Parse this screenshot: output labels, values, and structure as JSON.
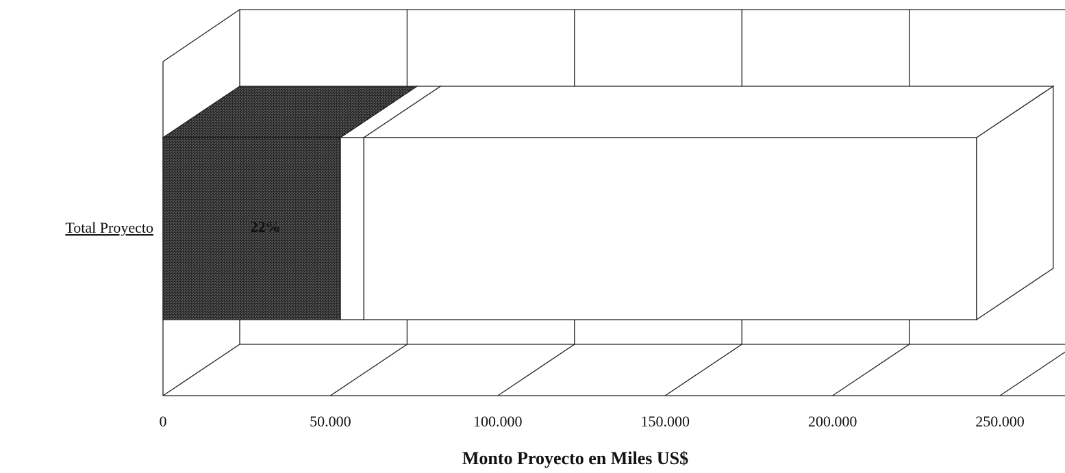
{
  "chart_data": {
    "type": "bar",
    "orientation": "horizontal",
    "stacked": true,
    "three_d": true,
    "categories": [
      "Total Proyecto"
    ],
    "series": [
      {
        "color": "#bdbdbd",
        "values": [
          53000
        ],
        "value_labels": [
          "22%"
        ]
      },
      {
        "color": "#ffffff",
        "values": [
          7000
        ]
      },
      {
        "color": "#ffffff",
        "values": [
          183000
        ]
      }
    ],
    "x_label": "Monto Proyecto en Miles US$",
    "xlim": [
      0,
      250000
    ],
    "xticks": [
      0,
      {
        "value": 50000,
        "label": "50.000"
      },
      {
        "value": 100000,
        "label": "100.000"
      },
      {
        "value": 150000,
        "label": "150.000"
      },
      {
        "value": 200000,
        "label": "200.000"
      },
      {
        "value": 250000,
        "label": "250.000"
      }
    ],
    "grid": true
  }
}
